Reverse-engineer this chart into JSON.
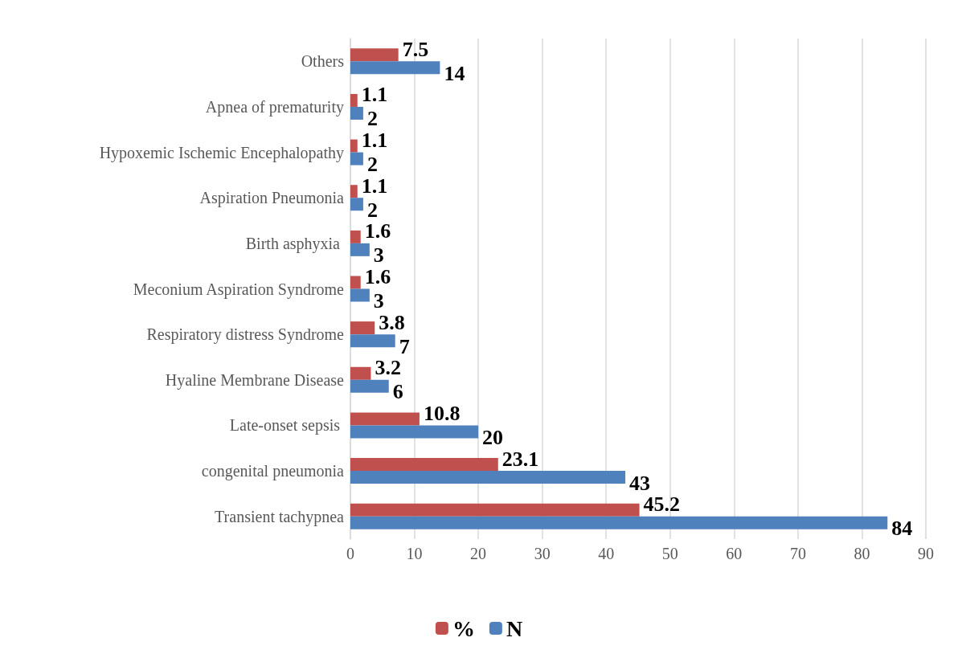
{
  "chart_data": {
    "type": "bar",
    "orientation": "horizontal",
    "categories": [
      "Others",
      "Apnea of prematurity",
      "Hypoxemic Ischemic Encephalopathy",
      "Aspiration Pneumonia",
      "Birth asphyxia ",
      "Meconium Aspiration Syndrome",
      "Respiratory distress Syndrome",
      "Hyaline Membrane Disease",
      "Late-onset sepsis ",
      "congenital pneumonia",
      "Transient tachypnea"
    ],
    "series": [
      {
        "name": "%",
        "color": "#c0504d",
        "values": [
          7.5,
          1.1,
          1.1,
          1.1,
          1.6,
          1.6,
          3.8,
          3.2,
          10.8,
          23.1,
          45.2
        ]
      },
      {
        "name": "N",
        "color": "#4f81bd",
        "values": [
          14,
          2,
          2,
          2,
          3,
          3,
          7,
          6,
          20,
          43,
          84
        ]
      }
    ],
    "xlim": [
      0,
      90
    ],
    "xticks": [
      0,
      10,
      20,
      30,
      40,
      50,
      60,
      70,
      80,
      90
    ],
    "grid": "x",
    "legend": "bottom",
    "data_labels": true
  }
}
